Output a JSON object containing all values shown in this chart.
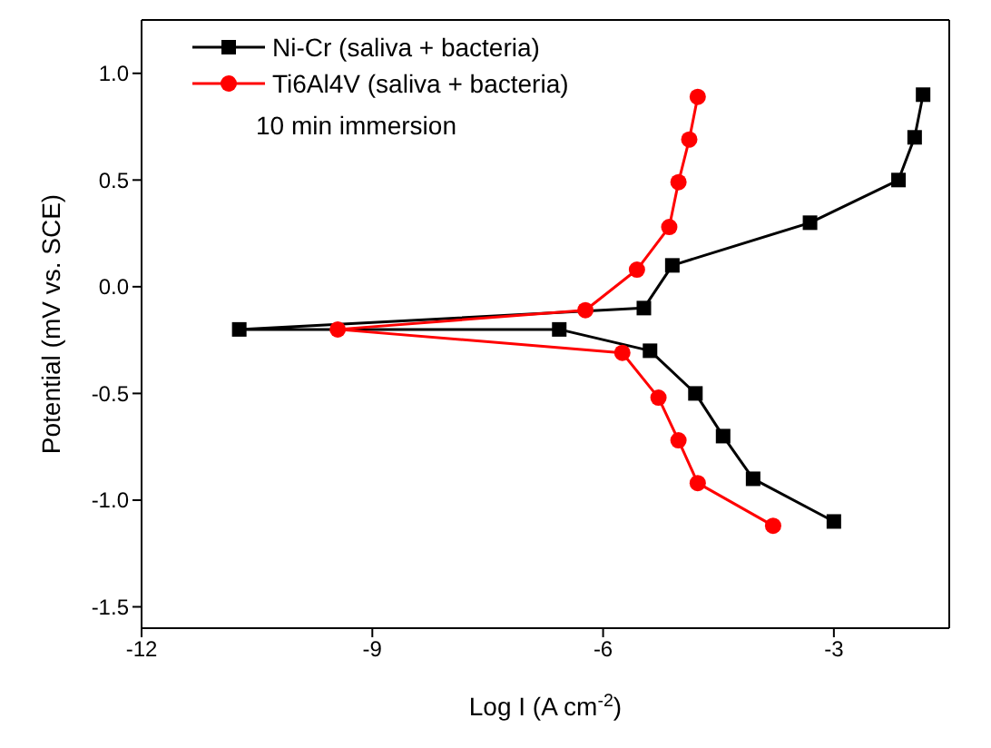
{
  "chart_data": {
    "type": "line",
    "xlabel": "Log I (A cm$^{-2}$)",
    "ylabel": "Potential (mV vs. SCE)",
    "annotations": [
      "10 min immersion"
    ],
    "legend": "top left",
    "line_style": "solid",
    "xlim": [
      -12,
      -1.5
    ],
    "xticks": [
      -12,
      -9,
      -6,
      -3
    ],
    "ylim": [
      -1.6,
      1.25
    ],
    "yticks": [
      {
        "value": -1.5,
        "label": "-1.5"
      },
      {
        "value": -1,
        "label": "-1.0"
      },
      {
        "value": -0.5,
        "label": "-0.5"
      },
      {
        "value": 0,
        "label": "0.0"
      },
      {
        "value": 0.5,
        "label": "0.5"
      },
      {
        "value": 1,
        "label": "1.0"
      }
    ],
    "series": [
      {
        "name": "Ni-Cr (saliva + bacteria)",
        "color": "#000000",
        "marker": "square",
        "x": [
          -3.0,
          -4.05,
          -4.44,
          -4.8,
          -5.39,
          -6.57,
          -10.73,
          -5.47,
          -5.1,
          -3.31,
          -2.16,
          -1.95,
          -1.84
        ],
        "values": [
          -1.1,
          -0.9,
          -0.7,
          -0.5,
          -0.3,
          -0.2,
          -0.2,
          -0.1,
          0.1,
          0.3,
          0.5,
          0.7,
          0.9
        ]
      },
      {
        "name": "Ti6Al4V (saliva + bacteria)",
        "color": "#ff0000",
        "marker": "circle",
        "x": [
          -3.79,
          -4.77,
          -5.02,
          -5.28,
          -5.75,
          -9.45,
          -6.23,
          -5.56,
          -5.14,
          -5.02,
          -4.88,
          -4.77
        ],
        "values": [
          -1.12,
          -0.92,
          -0.72,
          -0.52,
          -0.31,
          -0.2,
          -0.11,
          0.08,
          0.28,
          0.49,
          0.69,
          0.89
        ]
      }
    ]
  }
}
